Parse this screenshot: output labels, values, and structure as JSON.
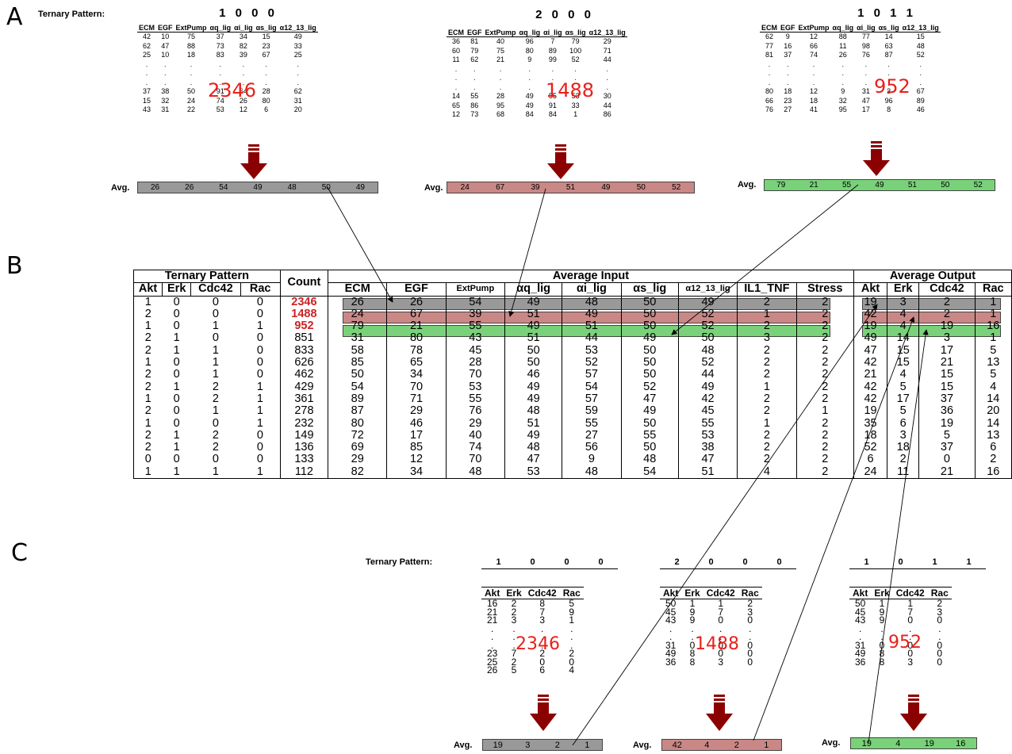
{
  "section_a": {
    "letter": "A",
    "label": "Ternary Pattern:",
    "columns": [
      "ECM",
      "EGF",
      "ExtPump",
      "αq_lig",
      "αi_lig",
      "αs_lig",
      "α12_13_lig"
    ],
    "avg_label": "Avg.",
    "panels": [
      {
        "pattern": "1 0 0 0",
        "count": "2346",
        "rows": [
          [
            "42",
            "10",
            "75",
            "37",
            "34",
            "15",
            "49"
          ],
          [
            "62",
            "47",
            "88",
            "73",
            "82",
            "23",
            "33"
          ],
          [
            "25",
            "10",
            "18",
            "83",
            "39",
            "67",
            "25"
          ],
          [
            ".",
            ".",
            ".",
            ".",
            ".",
            ".",
            "."
          ],
          [
            ".",
            ".",
            ".",
            ".",
            ".",
            ".",
            "."
          ],
          [
            ".",
            ".",
            ".",
            ".",
            ".",
            ".",
            "."
          ],
          [
            "37",
            "38",
            "50",
            "91",
            "64",
            "28",
            "62"
          ],
          [
            "15",
            "32",
            "24",
            "74",
            "26",
            "80",
            "31"
          ],
          [
            "43",
            "31",
            "22",
            "53",
            "12",
            "6",
            "20"
          ]
        ],
        "avg": [
          "26",
          "26",
          "54",
          "49",
          "48",
          "50",
          "49"
        ],
        "color": "#999999"
      },
      {
        "pattern": "2 0 0 0",
        "count": "1488",
        "rows": [
          [
            "36",
            "81",
            "40",
            "96",
            "7",
            "79",
            "29"
          ],
          [
            "60",
            "79",
            "75",
            "80",
            "89",
            "100",
            "71"
          ],
          [
            "11",
            "62",
            "21",
            "9",
            "99",
            "52",
            "44"
          ],
          [
            ".",
            ".",
            ".",
            ".",
            ".",
            ".",
            "."
          ],
          [
            ".",
            ".",
            ".",
            ".",
            ".",
            ".",
            "."
          ],
          [
            ".",
            ".",
            ".",
            ".",
            ".",
            ".",
            "."
          ],
          [
            "14",
            "55",
            "28",
            "49",
            "55",
            "53",
            "30"
          ],
          [
            "65",
            "86",
            "95",
            "49",
            "91",
            "33",
            "44"
          ],
          [
            "12",
            "73",
            "68",
            "84",
            "84",
            "1",
            "86"
          ]
        ],
        "avg": [
          "24",
          "67",
          "39",
          "51",
          "49",
          "50",
          "52"
        ],
        "color": "#c98886"
      },
      {
        "pattern": "1 0 1 1",
        "count": "952",
        "rows": [
          [
            "62",
            "9",
            "12",
            "88",
            "77",
            "14",
            "15"
          ],
          [
            "77",
            "16",
            "66",
            "11",
            "98",
            "63",
            "48"
          ],
          [
            "81",
            "37",
            "74",
            "26",
            "76",
            "87",
            "52"
          ],
          [
            ".",
            ".",
            ".",
            ".",
            ".",
            ".",
            "."
          ],
          [
            ".",
            ".",
            ".",
            ".",
            ".",
            ".",
            "."
          ],
          [
            ".",
            ".",
            ".",
            ".",
            ".",
            ".",
            "."
          ],
          [
            "80",
            "18",
            "12",
            "9",
            "31",
            "3",
            "67"
          ],
          [
            "66",
            "23",
            "18",
            "32",
            "47",
            "96",
            "89"
          ],
          [
            "76",
            "27",
            "41",
            "95",
            "17",
            "8",
            "46"
          ]
        ],
        "avg": [
          "79",
          "21",
          "55",
          "49",
          "51",
          "50",
          "52"
        ],
        "color": "#79d279"
      }
    ]
  },
  "section_b": {
    "letter": "B",
    "group_headers": {
      "pattern": "Ternary Pattern",
      "count": "Count",
      "input": "Average Input",
      "output": "Average Output"
    },
    "pattern_cols": [
      "Akt",
      "Erk",
      "Cdc42",
      "Rac"
    ],
    "input_cols": [
      "ECM",
      "EGF",
      "ExtPump",
      "αq_lig",
      "αi_lig",
      "αs_lig",
      "α12_13_lig",
      "IL1_TNF",
      "Stress"
    ],
    "output_cols": [
      "Akt",
      "Erk",
      "Cdc42",
      "Rac"
    ],
    "rows": [
      {
        "p": [
          "1",
          "0",
          "0",
          "0"
        ],
        "c": "2346",
        "i": [
          "26",
          "26",
          "54",
          "49",
          "48",
          "50",
          "49",
          "2",
          "2"
        ],
        "o": [
          "19",
          "3",
          "2",
          "1"
        ]
      },
      {
        "p": [
          "2",
          "0",
          "0",
          "0"
        ],
        "c": "1488",
        "i": [
          "24",
          "67",
          "39",
          "51",
          "49",
          "50",
          "52",
          "1",
          "2"
        ],
        "o": [
          "42",
          "4",
          "2",
          "1"
        ]
      },
      {
        "p": [
          "1",
          "0",
          "1",
          "1"
        ],
        "c": "952",
        "i": [
          "79",
          "21",
          "55",
          "49",
          "51",
          "50",
          "52",
          "2",
          "2"
        ],
        "o": [
          "19",
          "4",
          "19",
          "16"
        ]
      },
      {
        "p": [
          "2",
          "1",
          "0",
          "0"
        ],
        "c": "851",
        "i": [
          "31",
          "80",
          "43",
          "51",
          "44",
          "49",
          "50",
          "3",
          "2"
        ],
        "o": [
          "49",
          "14",
          "3",
          "1"
        ]
      },
      {
        "p": [
          "2",
          "1",
          "1",
          "0"
        ],
        "c": "833",
        "i": [
          "58",
          "78",
          "45",
          "50",
          "53",
          "50",
          "48",
          "2",
          "2"
        ],
        "o": [
          "47",
          "15",
          "17",
          "5"
        ]
      },
      {
        "p": [
          "1",
          "0",
          "1",
          "0"
        ],
        "c": "626",
        "i": [
          "85",
          "65",
          "28",
          "50",
          "52",
          "50",
          "52",
          "2",
          "2"
        ],
        "o": [
          "42",
          "15",
          "21",
          "13"
        ]
      },
      {
        "p": [
          "2",
          "0",
          "1",
          "0"
        ],
        "c": "462",
        "i": [
          "50",
          "34",
          "70",
          "46",
          "57",
          "50",
          "44",
          "2",
          "2"
        ],
        "o": [
          "21",
          "4",
          "15",
          "5"
        ]
      },
      {
        "p": [
          "2",
          "1",
          "2",
          "1"
        ],
        "c": "429",
        "i": [
          "54",
          "70",
          "53",
          "49",
          "54",
          "52",
          "49",
          "1",
          "2"
        ],
        "o": [
          "42",
          "5",
          "15",
          "4"
        ]
      },
      {
        "p": [
          "1",
          "0",
          "2",
          "1"
        ],
        "c": "361",
        "i": [
          "89",
          "71",
          "55",
          "49",
          "57",
          "47",
          "42",
          "2",
          "2"
        ],
        "o": [
          "42",
          "17",
          "37",
          "14"
        ]
      },
      {
        "p": [
          "2",
          "0",
          "1",
          "1"
        ],
        "c": "278",
        "i": [
          "87",
          "29",
          "76",
          "48",
          "59",
          "49",
          "45",
          "2",
          "1"
        ],
        "o": [
          "19",
          "5",
          "36",
          "20"
        ]
      },
      {
        "p": [
          "1",
          "0",
          "0",
          "1"
        ],
        "c": "232",
        "i": [
          "80",
          "46",
          "29",
          "51",
          "55",
          "50",
          "55",
          "1",
          "2"
        ],
        "o": [
          "35",
          "6",
          "19",
          "14"
        ]
      },
      {
        "p": [
          "2",
          "1",
          "2",
          "0"
        ],
        "c": "149",
        "i": [
          "72",
          "17",
          "40",
          "49",
          "27",
          "55",
          "53",
          "2",
          "2"
        ],
        "o": [
          "18",
          "3",
          "5",
          "13"
        ]
      },
      {
        "p": [
          "2",
          "1",
          "2",
          "0"
        ],
        "c": "136",
        "i": [
          "69",
          "85",
          "74",
          "48",
          "56",
          "50",
          "38",
          "2",
          "2"
        ],
        "o": [
          "52",
          "18",
          "37",
          "6"
        ]
      },
      {
        "p": [
          "0",
          "0",
          "0",
          "0"
        ],
        "c": "133",
        "i": [
          "29",
          "12",
          "70",
          "47",
          "9",
          "48",
          "47",
          "2",
          "2"
        ],
        "o": [
          "6",
          "2",
          "0",
          "2"
        ]
      },
      {
        "p": [
          "1",
          "1",
          "1",
          "1"
        ],
        "c": "112",
        "i": [
          "82",
          "34",
          "48",
          "53",
          "48",
          "54",
          "51",
          "4",
          "2"
        ],
        "o": [
          "24",
          "11",
          "21",
          "16"
        ]
      }
    ]
  },
  "section_c": {
    "letter": "C",
    "label": "Ternary Pattern:",
    "columns": [
      "Akt",
      "Erk",
      "Cdc42",
      "Rac"
    ],
    "avg_label": "Avg.",
    "panels": [
      {
        "pattern": [
          "1",
          "0",
          "0",
          "0"
        ],
        "count": "2346",
        "rows": [
          [
            "16",
            "2",
            "8",
            "5"
          ],
          [
            "21",
            "2",
            "7",
            "9"
          ],
          [
            "21",
            "3",
            "3",
            "1"
          ],
          [
            ".",
            ".",
            ".",
            "."
          ],
          [
            ".",
            ".",
            ".",
            "."
          ],
          [
            ".",
            ".",
            ".",
            "."
          ],
          [
            "23",
            "7",
            "2",
            "2"
          ],
          [
            "25",
            "2",
            "0",
            "0"
          ],
          [
            "26",
            "5",
            "6",
            "4"
          ]
        ],
        "avg": [
          "19",
          "3",
          "2",
          "1"
        ],
        "color": "#999999"
      },
      {
        "pattern": [
          "2",
          "0",
          "0",
          "0"
        ],
        "count": "1488",
        "rows": [
          [
            "50",
            "1",
            "1",
            "2"
          ],
          [
            "45",
            "9",
            "7",
            "3"
          ],
          [
            "43",
            "9",
            "0",
            "0"
          ],
          [
            ".",
            ".",
            ".",
            "."
          ],
          [
            ".",
            ".",
            ".",
            "."
          ],
          [
            "31",
            "0",
            "0",
            "0"
          ],
          [
            "49",
            "8",
            "0",
            "0"
          ],
          [
            "36",
            "8",
            "3",
            "0"
          ]
        ],
        "avg": [
          "42",
          "4",
          "2",
          "1"
        ],
        "color": "#c98886"
      },
      {
        "pattern": [
          "1",
          "0",
          "1",
          "1"
        ],
        "count": "952",
        "rows": [
          [
            "50",
            "1",
            "1",
            "2"
          ],
          [
            "45",
            "9",
            "7",
            "3"
          ],
          [
            "43",
            "9",
            "0",
            "0"
          ],
          [
            ".",
            ".",
            ".",
            "."
          ],
          [
            ".",
            ".",
            ".",
            "."
          ],
          [
            "31",
            "0",
            "0",
            "0"
          ],
          [
            "49",
            "8",
            "0",
            "0"
          ],
          [
            "36",
            "8",
            "3",
            "0"
          ]
        ],
        "avg": [
          "19",
          "4",
          "19",
          "16"
        ],
        "color": "#79d279"
      }
    ]
  }
}
